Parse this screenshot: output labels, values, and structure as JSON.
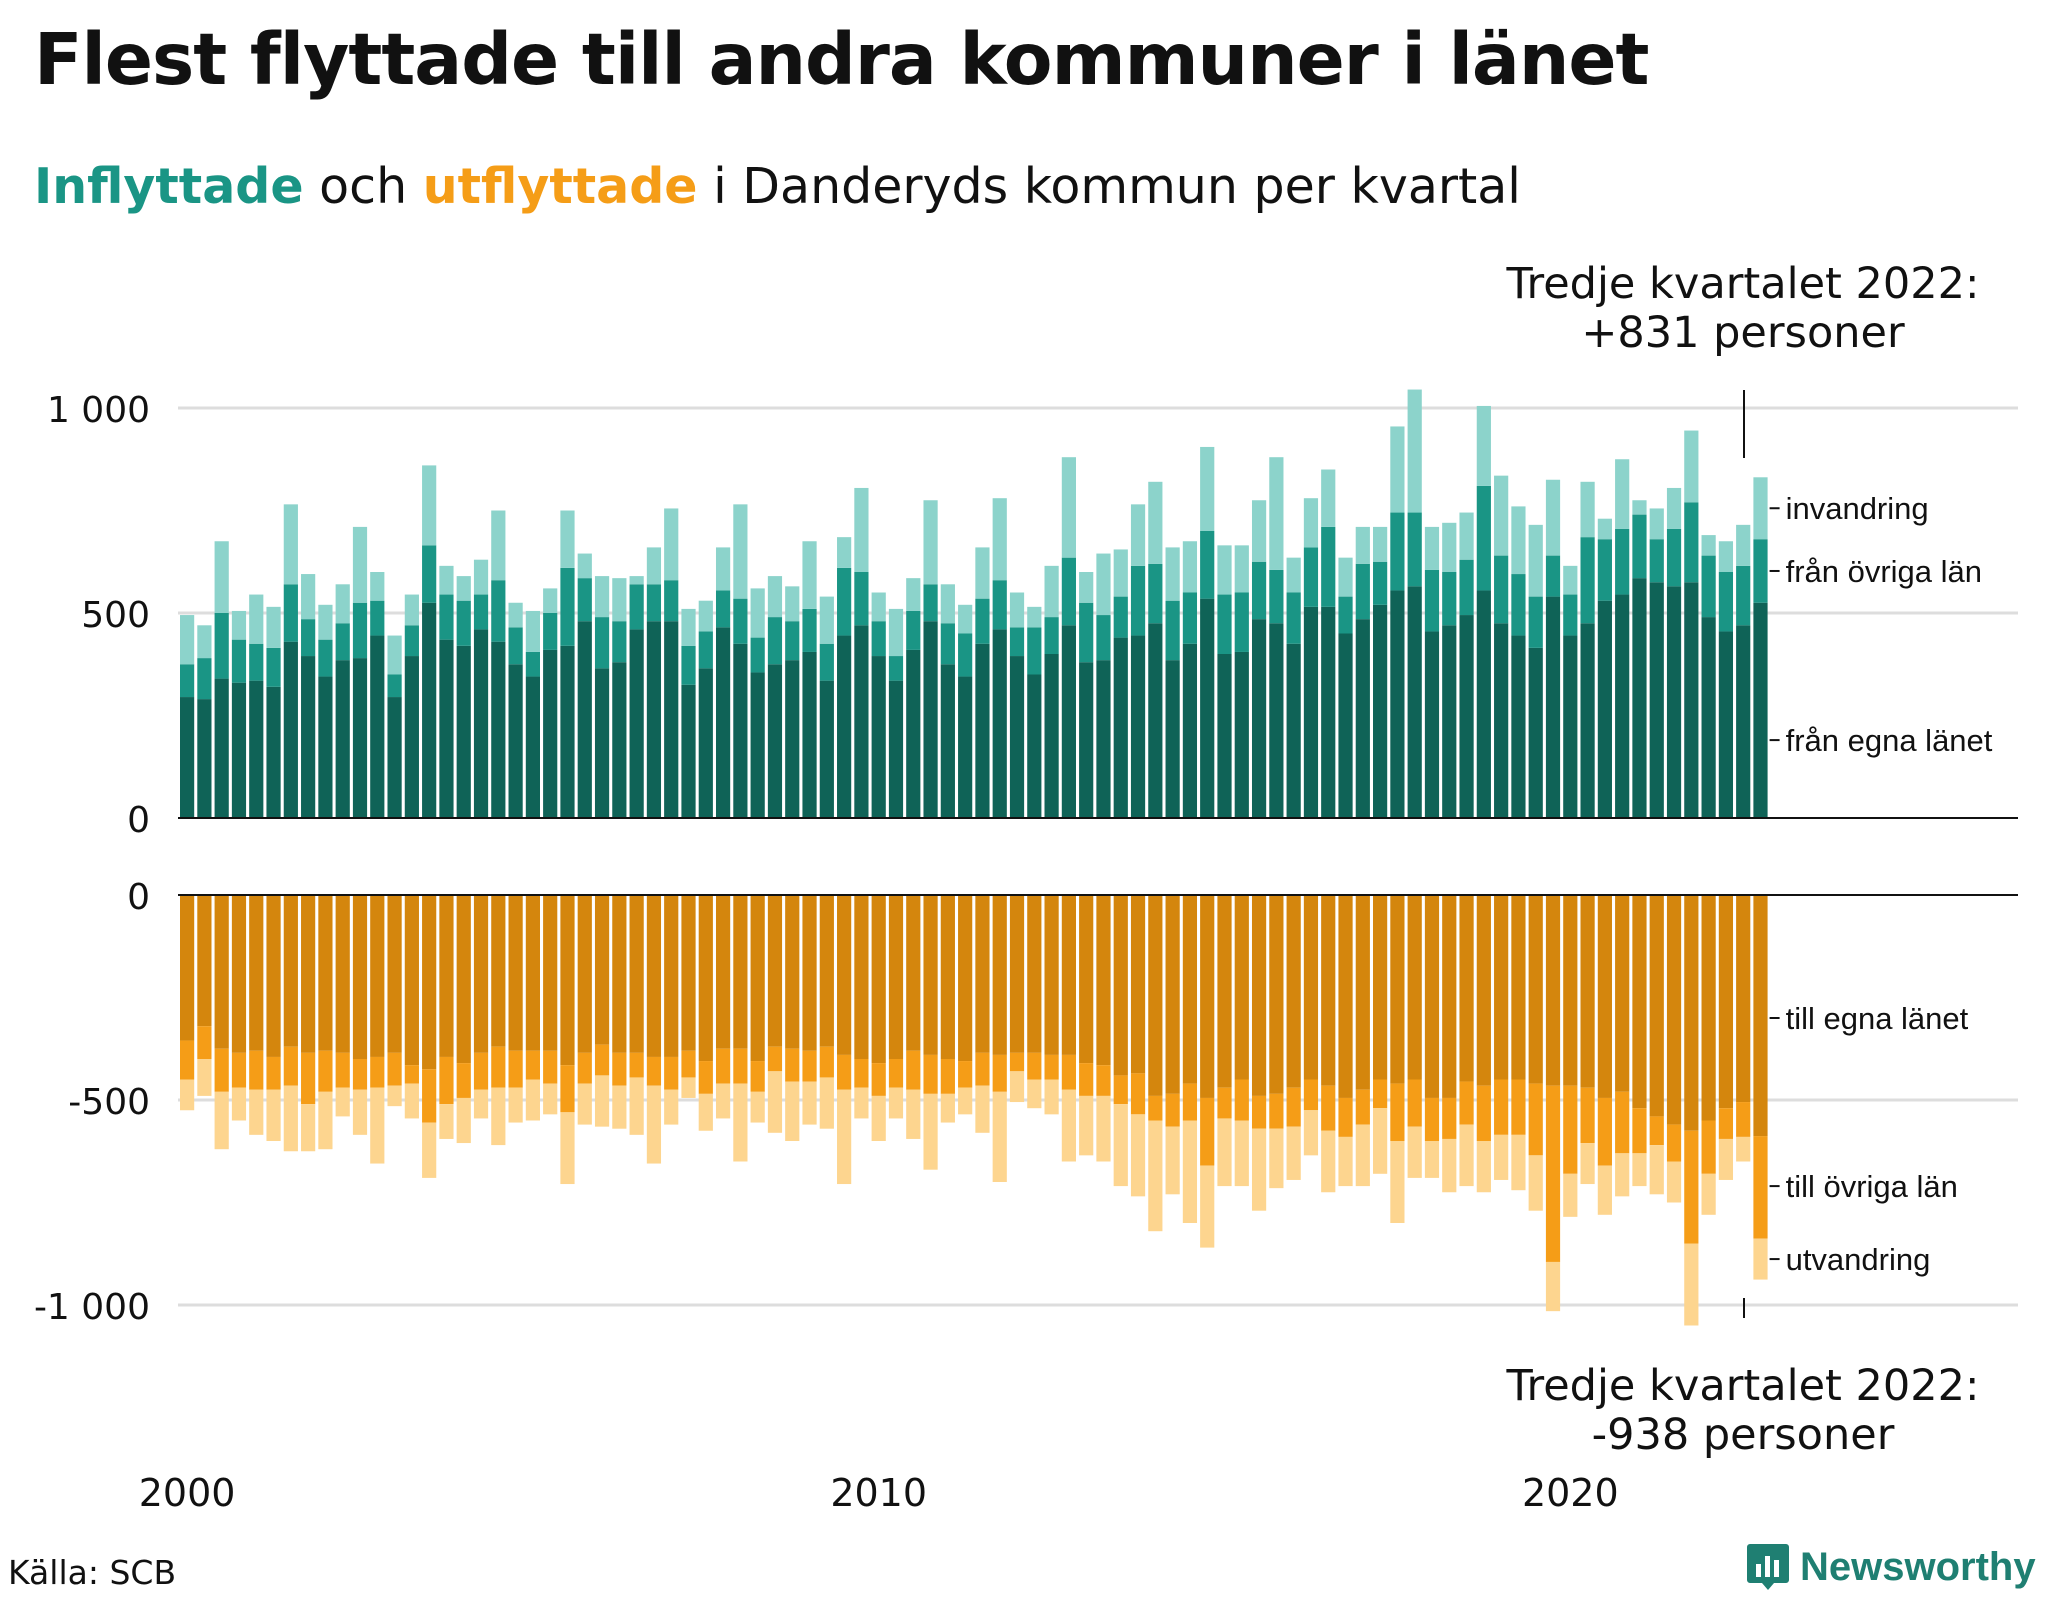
{
  "title": "Flest flyttade till andra kommuner i länet",
  "subtitle": {
    "part1": "Inflyttade",
    "part2": " och ",
    "part3": "utflyttade",
    "part4": " i Danderyds kommun per kvartal"
  },
  "colors": {
    "in_own": "#0f6357",
    "in_other": "#1a9585",
    "in_abroad": "#8cd3cb",
    "out_own": "#d4860d",
    "out_other": "#f59d17",
    "out_abroad": "#fdd58f",
    "grid": "#dddddd",
    "brand": "#1f7f72"
  },
  "annotation_top": {
    "line1": "Tredje kvartalet 2022:",
    "line2": "+831 personer"
  },
  "annotation_bottom": {
    "line1": "Tredje kvartalet 2022:",
    "line2": "-938 personer"
  },
  "source": "Källa: SCB",
  "brand": "Newsworthy",
  "chart_data": [
    {
      "type": "bar",
      "stacked": true,
      "title": "Inflyttade",
      "x_unit": "quarter",
      "x_start": "2000 Q1",
      "x_ticks": [
        "2000",
        "2010",
        "2020"
      ],
      "ylim": [
        0,
        1050
      ],
      "y_ticks": [
        0,
        500,
        1000
      ],
      "y_tick_labels": [
        "0",
        "500",
        "1 000"
      ],
      "grid": true,
      "labels_position": "right",
      "series": [
        {
          "name": "från egna länet",
          "values": [
            295,
            290,
            340,
            330,
            335,
            320,
            430,
            395,
            345,
            385,
            390,
            445,
            295,
            395,
            525,
            435,
            420,
            460,
            430,
            375,
            345,
            410,
            420,
            480,
            365,
            380,
            460,
            480,
            480,
            325,
            365,
            465,
            425,
            355,
            375,
            385,
            405,
            335,
            445,
            470,
            395,
            335,
            410,
            480,
            375,
            345,
            425,
            460,
            395,
            350,
            400,
            470,
            380,
            385,
            440,
            445,
            475,
            385,
            425,
            535,
            400,
            405,
            485,
            475,
            425,
            515,
            515,
            450,
            485,
            520,
            555,
            565,
            455,
            470,
            495,
            555,
            475,
            445,
            415,
            540,
            445,
            475,
            530,
            545,
            585,
            575,
            565,
            575,
            490,
            455,
            470,
            525
          ]
        },
        {
          "name": "från övriga län",
          "values": [
            80,
            100,
            160,
            105,
            90,
            95,
            140,
            90,
            90,
            90,
            135,
            85,
            55,
            75,
            140,
            110,
            110,
            85,
            150,
            90,
            60,
            90,
            190,
            105,
            125,
            100,
            110,
            90,
            100,
            95,
            90,
            90,
            110,
            85,
            115,
            95,
            105,
            90,
            165,
            130,
            85,
            60,
            95,
            90,
            100,
            105,
            110,
            120,
            70,
            115,
            90,
            165,
            145,
            110,
            100,
            170,
            145,
            145,
            125,
            165,
            145,
            145,
            140,
            130,
            125,
            145,
            195,
            90,
            135,
            105,
            190,
            180,
            150,
            130,
            135,
            255,
            165,
            150,
            125,
            100,
            100,
            210,
            150,
            160,
            155,
            105,
            140,
            195,
            150,
            145,
            145,
            155
          ]
        },
        {
          "name": "invandring",
          "values": [
            120,
            80,
            175,
            70,
            120,
            100,
            195,
            110,
            85,
            95,
            185,
            70,
            95,
            75,
            195,
            70,
            60,
            85,
            170,
            60,
            100,
            60,
            140,
            60,
            100,
            105,
            20,
            90,
            175,
            90,
            75,
            105,
            230,
            120,
            100,
            85,
            165,
            115,
            75,
            205,
            70,
            115,
            80,
            205,
            95,
            70,
            125,
            200,
            85,
            50,
            125,
            245,
            75,
            150,
            115,
            150,
            200,
            130,
            125,
            205,
            120,
            115,
            150,
            275,
            85,
            120,
            140,
            95,
            90,
            85,
            210,
            300,
            105,
            120,
            115,
            195,
            195,
            165,
            175,
            185,
            70,
            135,
            50,
            170,
            35,
            75,
            100,
            175,
            50,
            75,
            100,
            151
          ]
        }
      ]
    },
    {
      "type": "bar",
      "stacked": true,
      "title": "Utflyttade",
      "x_unit": "quarter",
      "x_start": "2000 Q1",
      "x_ticks": [
        "2000",
        "2010",
        "2020"
      ],
      "ylim": [
        -1050,
        0
      ],
      "y_ticks": [
        0,
        -500,
        -1000
      ],
      "y_tick_labels": [
        "0",
        "-500",
        "-1 000"
      ],
      "grid": true,
      "labels_position": "right",
      "series": [
        {
          "name": "till egna länet",
          "values": [
            -355,
            -320,
            -375,
            -385,
            -380,
            -395,
            -370,
            -385,
            -380,
            -385,
            -400,
            -395,
            -385,
            -415,
            -425,
            -395,
            -410,
            -385,
            -370,
            -380,
            -380,
            -380,
            -415,
            -385,
            -365,
            -385,
            -385,
            -395,
            -395,
            -380,
            -405,
            -375,
            -375,
            -405,
            -370,
            -375,
            -380,
            -370,
            -390,
            -400,
            -410,
            -400,
            -380,
            -390,
            -400,
            -405,
            -385,
            -390,
            -385,
            -385,
            -390,
            -390,
            -410,
            -415,
            -440,
            -435,
            -490,
            -485,
            -460,
            -495,
            -470,
            -450,
            -490,
            -485,
            -470,
            -450,
            -465,
            -495,
            -475,
            -450,
            -460,
            -450,
            -495,
            -495,
            -455,
            -465,
            -450,
            -450,
            -460,
            -465,
            -465,
            -470,
            -495,
            -480,
            -520,
            -540,
            -560,
            -575,
            -550,
            -520,
            -505,
            -588
          ]
        },
        {
          "name": "till övriga län",
          "values": [
            -95,
            -80,
            -105,
            -85,
            -95,
            -80,
            -95,
            -125,
            -100,
            -85,
            -75,
            -75,
            -80,
            -45,
            -130,
            -115,
            -85,
            -90,
            -100,
            -90,
            -70,
            -80,
            -115,
            -75,
            -75,
            -80,
            -60,
            -70,
            -80,
            -65,
            -80,
            -85,
            -85,
            -75,
            -60,
            -80,
            -75,
            -75,
            -85,
            -70,
            -80,
            -70,
            -95,
            -95,
            -85,
            -65,
            -80,
            -90,
            -45,
            -65,
            -60,
            -85,
            -80,
            -75,
            -70,
            -100,
            -60,
            -80,
            -90,
            -165,
            -75,
            -100,
            -80,
            -85,
            -95,
            -75,
            -110,
            -95,
            -85,
            -70,
            -140,
            -115,
            -105,
            -100,
            -105,
            -135,
            -135,
            -135,
            -175,
            -430,
            -215,
            -135,
            -165,
            -150,
            -110,
            -70,
            -90,
            -275,
            -130,
            -75,
            -85,
            -250
          ]
        },
        {
          "name": "utvandring",
          "values": [
            -75,
            -90,
            -140,
            -80,
            -110,
            -125,
            -160,
            -115,
            -140,
            -70,
            -110,
            -185,
            -50,
            -85,
            -135,
            -85,
            -110,
            -70,
            -140,
            -85,
            -100,
            -75,
            -175,
            -100,
            -125,
            -105,
            -140,
            -190,
            -85,
            -50,
            -90,
            -85,
            -190,
            -75,
            -150,
            -145,
            -105,
            -125,
            -230,
            -75,
            -110,
            -75,
            -120,
            -185,
            -70,
            -65,
            -115,
            -220,
            -75,
            -70,
            -85,
            -175,
            -145,
            -160,
            -200,
            -200,
            -270,
            -165,
            -250,
            -200,
            -165,
            -160,
            -200,
            -145,
            -130,
            -110,
            -150,
            -120,
            -150,
            -160,
            -200,
            -125,
            -90,
            -130,
            -150,
            -125,
            -110,
            -135,
            -135,
            -120,
            -105,
            -100,
            -120,
            -105,
            -80,
            -120,
            -100,
            -200,
            -100,
            -100,
            -60,
            -100
          ]
        }
      ]
    }
  ]
}
